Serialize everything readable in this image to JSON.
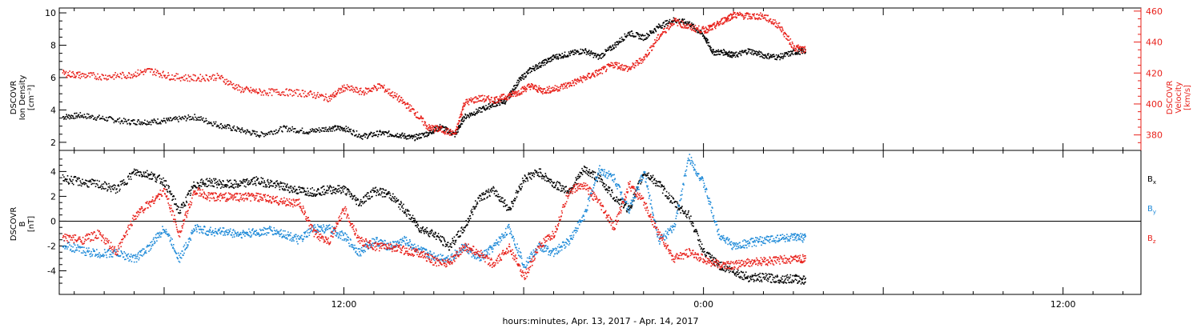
{
  "footer": {
    "xlabel": "hours:minutes, Apr. 13, 2017 - Apr. 14, 2017"
  },
  "colors": {
    "black": "#000000",
    "red": "#e8201a",
    "blue": "#1f8ad8"
  },
  "chart_data": [
    {
      "type": "scatter",
      "panel": "top",
      "ylabel": [
        "DSCOVR",
        "Ion Density",
        "[cm⁻³]"
      ],
      "ylabel_right": [
        "DSCOVR",
        "Velocity",
        "[km/s]"
      ],
      "ylim": [
        1.5,
        10.3
      ],
      "yticks": [
        2,
        4,
        6,
        8,
        10
      ],
      "ylim_right": [
        370,
        462
      ],
      "yticks_right": [
        380,
        400,
        420,
        440,
        460
      ],
      "xlim_hours": [
        2.5,
        38.6
      ],
      "xtick_labels": [
        {
          "h": 12,
          "label": "12:00"
        },
        {
          "h": 24,
          "label": "0:00"
        },
        {
          "h": 36,
          "label": "12:00"
        }
      ],
      "series": [
        {
          "name": "Ion Density",
          "color": "#000000",
          "axis": "left",
          "x": [
            2.6,
            3.2,
            4.0,
            4.8,
            5.5,
            6.2,
            7.0,
            7.8,
            8.5,
            9.2,
            10.0,
            10.8,
            11.5,
            12.0,
            12.6,
            13.2,
            13.8,
            14.3,
            14.8,
            15.2,
            15.7,
            16.0,
            16.5,
            17.0,
            17.4,
            17.8,
            18.2,
            18.6,
            19.0,
            19.5,
            20.0,
            20.5,
            21.0,
            21.5,
            22.0,
            22.5,
            23.0,
            23.5,
            24.0,
            24.3,
            24.7,
            25.0,
            25.5,
            26.0,
            26.5,
            27.0,
            27.4
          ],
          "y": [
            3.6,
            3.7,
            3.5,
            3.3,
            3.3,
            3.4,
            3.6,
            3.1,
            2.8,
            2.5,
            2.9,
            2.7,
            2.9,
            2.9,
            2.4,
            2.6,
            2.5,
            2.3,
            2.6,
            3.0,
            2.5,
            3.6,
            4.0,
            4.4,
            4.6,
            5.8,
            6.5,
            6.9,
            7.3,
            7.5,
            7.7,
            7.3,
            8.0,
            8.8,
            8.5,
            9.2,
            9.6,
            9.4,
            8.6,
            7.6,
            7.6,
            7.4,
            7.7,
            7.4,
            7.3,
            7.6,
            7.7
          ]
        },
        {
          "name": "Velocity",
          "color": "#e8201a",
          "axis": "right",
          "x": [
            2.6,
            3.2,
            4.0,
            4.8,
            5.5,
            6.2,
            7.0,
            7.8,
            8.5,
            9.2,
            10.0,
            10.8,
            11.5,
            12.0,
            12.6,
            13.2,
            13.8,
            14.3,
            14.8,
            15.2,
            15.7,
            16.0,
            16.5,
            17.0,
            17.4,
            17.8,
            18.2,
            18.6,
            19.0,
            19.5,
            20.0,
            20.5,
            21.0,
            21.5,
            22.0,
            22.5,
            23.0,
            23.5,
            24.0,
            24.3,
            24.7,
            25.0,
            25.5,
            26.0,
            26.5,
            27.0,
            27.4
          ],
          "y": [
            420,
            419,
            418,
            419,
            422,
            418,
            417,
            418,
            410,
            408,
            408,
            407,
            404,
            411,
            408,
            412,
            404,
            396,
            385,
            384,
            381,
            401,
            404,
            403,
            405,
            408,
            412,
            409,
            410,
            413,
            417,
            421,
            426,
            423,
            430,
            444,
            454,
            450,
            448,
            450,
            455,
            458,
            457,
            457,
            451,
            437,
            435
          ]
        }
      ]
    },
    {
      "type": "scatter",
      "panel": "bottom",
      "ylabel": [
        "DSCOVR",
        "B",
        "[nT]"
      ],
      "ylim": [
        -5.9,
        5.7
      ],
      "yticks": [
        -4,
        -2,
        0,
        2,
        4
      ],
      "zero_line": true,
      "xlim_hours": [
        2.5,
        38.6
      ],
      "xtick_labels": [
        {
          "h": 12,
          "label": "12:00"
        },
        {
          "h": 24,
          "label": "0:00"
        },
        {
          "h": 36,
          "label": "12:00"
        }
      ],
      "legend": [
        {
          "name": "B",
          "sub": "x",
          "color": "#000000"
        },
        {
          "name": "B",
          "sub": "y",
          "color": "#1f8ad8"
        },
        {
          "name": "B",
          "sub": "z",
          "color": "#e8201a"
        }
      ],
      "series": [
        {
          "name": "Bx",
          "color": "#000000",
          "x": [
            2.6,
            3.2,
            3.8,
            4.4,
            5.0,
            5.5,
            6.0,
            6.5,
            7.0,
            7.5,
            8.0,
            8.5,
            9.0,
            9.5,
            10.0,
            10.5,
            11.0,
            11.5,
            12.0,
            12.5,
            13.0,
            13.5,
            14.0,
            14.5,
            15.0,
            15.5,
            16.0,
            16.5,
            17.0,
            17.5,
            18.0,
            18.5,
            19.0,
            19.5,
            20.0,
            20.5,
            21.0,
            21.5,
            22.0,
            22.5,
            23.0,
            23.5,
            24.0,
            24.5,
            25.0,
            25.5,
            26.0,
            26.5,
            27.0,
            27.4
          ],
          "y": [
            3.5,
            3.2,
            3.0,
            2.6,
            4.0,
            3.8,
            3.2,
            0.8,
            3.0,
            3.2,
            3.0,
            3.0,
            3.3,
            3.1,
            2.8,
            2.5,
            2.4,
            2.6,
            2.6,
            1.5,
            2.5,
            2.2,
            1.0,
            -0.5,
            -1.0,
            -2.0,
            -0.5,
            2.0,
            2.5,
            1.0,
            3.5,
            4.0,
            3.0,
            2.5,
            4.2,
            3.5,
            2.0,
            1.0,
            4.0,
            3.0,
            1.5,
            0.5,
            -2.5,
            -3.5,
            -4.0,
            -4.5,
            -4.5,
            -4.6,
            -4.6,
            -4.7
          ]
        },
        {
          "name": "By",
          "color": "#1f8ad8",
          "x": [
            2.6,
            3.2,
            3.8,
            4.4,
            5.0,
            5.5,
            6.0,
            6.5,
            7.0,
            7.5,
            8.0,
            8.5,
            9.0,
            9.5,
            10.0,
            10.5,
            11.0,
            11.5,
            12.0,
            12.5,
            13.0,
            13.5,
            14.0,
            14.5,
            15.0,
            15.5,
            16.0,
            16.5,
            17.0,
            17.5,
            18.0,
            18.5,
            19.0,
            19.5,
            20.0,
            20.5,
            21.0,
            21.5,
            22.0,
            22.5,
            23.0,
            23.5,
            24.0,
            24.5,
            25.0,
            25.5,
            26.0,
            26.5,
            27.0,
            27.4
          ],
          "y": [
            -1.8,
            -2.3,
            -2.6,
            -2.5,
            -3.0,
            -2.0,
            -0.5,
            -3.0,
            -0.5,
            -0.8,
            -0.8,
            -1.0,
            -0.9,
            -0.7,
            -1.0,
            -1.5,
            -0.5,
            -0.6,
            -1.2,
            -2.5,
            -1.5,
            -2.0,
            -1.5,
            -2.3,
            -2.8,
            -3.0,
            -2.0,
            -3.0,
            -2.0,
            -0.5,
            -3.5,
            -2.0,
            -2.5,
            -1.5,
            0.5,
            4.2,
            3.5,
            1.0,
            4.0,
            -1.5,
            -0.5,
            5.2,
            3.0,
            -1.0,
            -2.0,
            -1.7,
            -1.5,
            -1.3,
            -1.3,
            -1.3
          ]
        },
        {
          "name": "Bz",
          "color": "#e8201a",
          "x": [
            2.6,
            3.2,
            3.8,
            4.4,
            5.0,
            5.5,
            6.0,
            6.5,
            7.0,
            7.5,
            8.0,
            8.5,
            9.0,
            9.5,
            10.0,
            10.5,
            11.0,
            11.5,
            12.0,
            12.5,
            13.0,
            13.5,
            14.0,
            14.5,
            15.0,
            15.5,
            16.0,
            16.5,
            17.0,
            17.5,
            18.0,
            18.5,
            19.0,
            19.5,
            20.0,
            20.5,
            21.0,
            21.5,
            22.0,
            22.5,
            23.0,
            23.5,
            24.0,
            24.5,
            25.0,
            25.5,
            26.0,
            26.5,
            27.0,
            27.4
          ],
          "y": [
            -1.2,
            -1.5,
            -1.0,
            -2.5,
            0.5,
            1.5,
            2.5,
            -1.0,
            2.5,
            2.0,
            2.0,
            2.0,
            2.0,
            1.8,
            1.6,
            1.5,
            -1.0,
            -1.5,
            1.0,
            -1.5,
            -2.0,
            -2.0,
            -2.3,
            -2.5,
            -3.2,
            -3.3,
            -2.0,
            -2.5,
            -3.5,
            -2.0,
            -4.5,
            -2.0,
            -1.0,
            2.5,
            3.0,
            1.5,
            -0.5,
            3.0,
            1.5,
            -1.0,
            -3.0,
            -2.5,
            -3.0,
            -3.5,
            -3.5,
            -3.3,
            -3.2,
            -3.1,
            -3.0,
            -3.0
          ]
        }
      ]
    }
  ]
}
